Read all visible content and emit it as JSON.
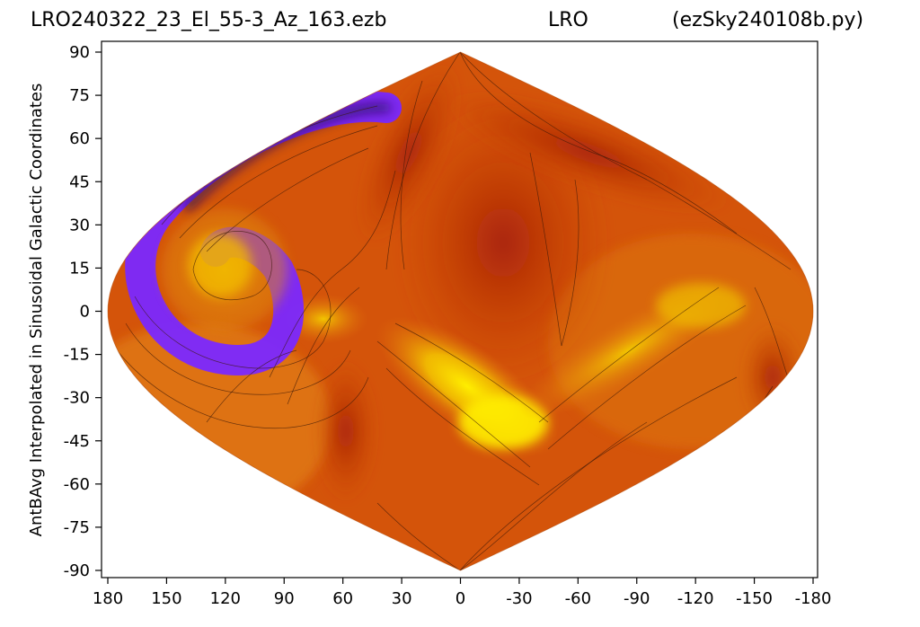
{
  "chart_data": {
    "type": "heatmap",
    "projection": "sinusoidal",
    "title_left": "LRO240322_23_El_55-3_Az_163.ezb",
    "title_center": "LRO",
    "title_right": "(ezSky240108b.py)",
    "xlabel": "",
    "ylabel": "AntBAvg Interpolated in Sinusoidal Galactic Coordinates",
    "xlim": [
      180,
      -180
    ],
    "ylim": [
      -90,
      90
    ],
    "x_ticks": [
      "180",
      "150",
      "120",
      "90",
      "60",
      "30",
      "0",
      "-30",
      "-60",
      "-90",
      "-120",
      "-150",
      "-180"
    ],
    "y_ticks": [
      "90",
      "75",
      "60",
      "45",
      "30",
      "15",
      "0",
      "-15",
      "-30",
      "-45",
      "-60",
      "-75",
      "-90"
    ],
    "colormap": [
      "#3a1a8a",
      "#7a28ff",
      "#8a1a1a",
      "#b82a10",
      "#cc4a00",
      "#e07010",
      "#f0b000",
      "#ffee00"
    ],
    "grid": false,
    "contour_lines": true
  }
}
